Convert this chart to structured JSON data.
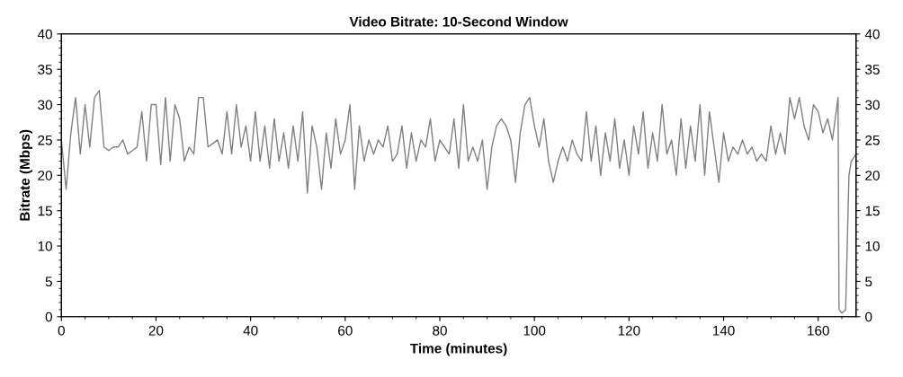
{
  "chart_data": {
    "type": "line",
    "title": "Video Bitrate: 10-Second Window",
    "xlabel": "Time (minutes)",
    "ylabel": "Bitrate (Mbps)",
    "xlim": [
      0,
      168
    ],
    "xticks": [
      0,
      20,
      40,
      60,
      80,
      100,
      120,
      140,
      160
    ],
    "ylim": [
      0,
      40
    ],
    "yticks": [
      0,
      5,
      10,
      15,
      20,
      25,
      30,
      35,
      40
    ],
    "y2lim": [
      0,
      40
    ],
    "y2ticks": [
      0,
      5,
      10,
      15,
      20,
      25,
      30,
      35,
      40
    ],
    "grid": false,
    "legend": false,
    "marker": "none",
    "line_style": "solid",
    "series": [
      {
        "color": "#808080",
        "x": [
          0,
          1,
          2,
          3,
          4,
          5,
          6,
          7,
          8,
          9,
          10,
          11,
          12,
          13,
          14,
          15,
          16,
          17,
          18,
          19,
          20,
          21,
          22,
          23,
          24,
          25,
          26,
          27,
          28,
          29,
          30,
          31,
          32,
          33,
          34,
          35,
          36,
          37,
          38,
          39,
          40,
          41,
          42,
          43,
          44,
          45,
          46,
          47,
          48,
          49,
          50,
          51,
          52,
          53,
          54,
          55,
          56,
          57,
          58,
          59,
          60,
          61,
          62,
          63,
          64,
          65,
          66,
          67,
          68,
          69,
          70,
          71,
          72,
          73,
          74,
          75,
          76,
          77,
          78,
          79,
          80,
          81,
          82,
          83,
          84,
          85,
          86,
          87,
          88,
          89,
          90,
          91,
          92,
          93,
          94,
          95,
          96,
          97,
          98,
          99,
          100,
          101,
          102,
          103,
          104,
          105,
          106,
          107,
          108,
          109,
          110,
          111,
          112,
          113,
          114,
          115,
          116,
          117,
          118,
          119,
          120,
          121,
          122,
          123,
          124,
          125,
          126,
          127,
          128,
          129,
          130,
          131,
          132,
          133,
          134,
          135,
          136,
          137,
          138,
          139,
          140,
          141,
          142,
          143,
          144,
          145,
          146,
          147,
          148,
          149,
          150,
          151,
          152,
          153,
          154,
          155,
          156,
          157,
          158,
          159,
          160,
          161,
          162,
          163,
          164.2,
          164.4,
          165,
          165.8,
          166.5,
          167,
          167.5,
          168
        ],
        "values": [
          25,
          18,
          26,
          31,
          23,
          30,
          24,
          31,
          32,
          24,
          23.5,
          24,
          24,
          25,
          23,
          23.5,
          24,
          29,
          22,
          30,
          30,
          21.5,
          31,
          22,
          30,
          28,
          22,
          24,
          23,
          31,
          31,
          24,
          24.5,
          25,
          23,
          29,
          23,
          30,
          24,
          27,
          22,
          29,
          22,
          27,
          21,
          28,
          22,
          26,
          21,
          27,
          22,
          29,
          17.5,
          27,
          24,
          18,
          26,
          21,
          28,
          23,
          25,
          30,
          18,
          27,
          22,
          25,
          23,
          25,
          24,
          27,
          22,
          23,
          27,
          21,
          26,
          22,
          25,
          24,
          28,
          22,
          25,
          24,
          23,
          28,
          21,
          30,
          22,
          24,
          22,
          25,
          18,
          24,
          27,
          28,
          27,
          25,
          19,
          26,
          30,
          31,
          27,
          24,
          28,
          22,
          19,
          22,
          24,
          22,
          25,
          23,
          22,
          29,
          22,
          27,
          20,
          26,
          22,
          28,
          21,
          25,
          20,
          27,
          23,
          29,
          21,
          26,
          22,
          30,
          23,
          25,
          20,
          28,
          21,
          27,
          22,
          30,
          20,
          29,
          24,
          19,
          26,
          22,
          24,
          23,
          25,
          23,
          24,
          22,
          23,
          22,
          27,
          23,
          26,
          23,
          31,
          28,
          31,
          27,
          25,
          30,
          29,
          26,
          28,
          25,
          31,
          1,
          0.5,
          1,
          20,
          22,
          22.5,
          23
        ]
      }
    ]
  }
}
